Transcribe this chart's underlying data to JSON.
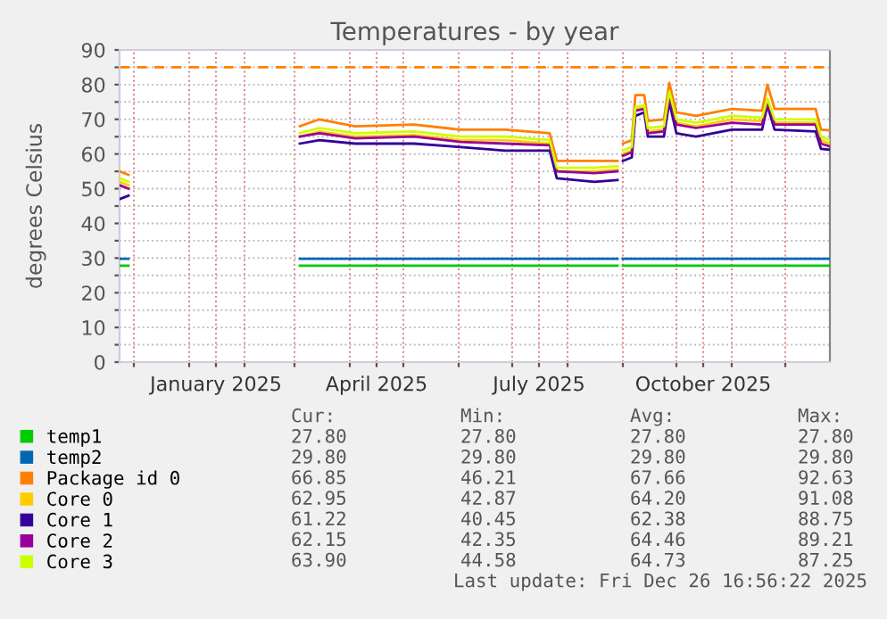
{
  "chart_data": {
    "type": "line",
    "title": "Temperatures - by year",
    "ylabel": "degrees Celsius",
    "x": [
      "2024-11-23",
      "2024-11-28",
      "2024-12-15",
      "2025-03-04",
      "2025-03-15",
      "2025-04-04",
      "2025-05-07",
      "2025-06-02",
      "2025-06-27",
      "2025-07-22",
      "2025-07-26",
      "2025-08-16",
      "2025-08-29",
      "2025-08-31",
      "2025-09-01",
      "2025-09-06",
      "2025-09-08",
      "2025-09-13",
      "2025-09-15",
      "2025-09-24",
      "2025-09-27",
      "2025-10-01",
      "2025-10-12",
      "2025-11-01",
      "2025-11-18",
      "2025-11-21",
      "2025-11-25",
      "2025-12-18",
      "2025-12-21",
      "2025-12-26"
    ],
    "series": [
      {
        "name": "temp1",
        "color": "#00cc00",
        "values": [
          27.8,
          27.8,
          null,
          27.8,
          27.8,
          27.8,
          27.8,
          27.8,
          27.8,
          27.8,
          27.8,
          27.8,
          27.8,
          null,
          27.8,
          27.8,
          27.8,
          27.8,
          27.8,
          27.8,
          27.8,
          27.8,
          27.8,
          27.8,
          27.8,
          27.8,
          27.8,
          27.8,
          27.8,
          27.8
        ]
      },
      {
        "name": "temp2",
        "color": "#0066b3",
        "values": [
          29.8,
          29.8,
          null,
          29.8,
          29.8,
          29.8,
          29.8,
          29.8,
          29.8,
          29.8,
          29.8,
          29.8,
          29.8,
          null,
          29.8,
          29.8,
          29.8,
          29.8,
          29.8,
          29.8,
          29.8,
          29.8,
          29.8,
          29.8,
          29.8,
          29.8,
          29.8,
          29.8,
          29.8,
          29.8
        ]
      },
      {
        "name": "Package id 0",
        "color": "#ff8000",
        "values": [
          55,
          54,
          null,
          68,
          70,
          68,
          68.5,
          67,
          67,
          66,
          58,
          58,
          58,
          null,
          63,
          64,
          77,
          77,
          69.5,
          70,
          80.5,
          72,
          71,
          73,
          72.5,
          80,
          73,
          73,
          67,
          66.85
        ]
      },
      {
        "name": "Core 0",
        "color": "#ffcc00",
        "values": [
          52,
          51,
          null,
          65,
          66.5,
          65,
          65.5,
          64,
          64,
          63,
          55,
          55,
          55.5,
          null,
          60,
          61,
          73,
          73.5,
          66.5,
          67,
          77,
          69,
          68,
          70,
          69.5,
          75,
          69,
          69,
          64,
          62.95
        ]
      },
      {
        "name": "Core 1",
        "color": "#330099",
        "values": [
          47,
          48,
          null,
          63,
          64,
          63,
          63,
          62,
          61,
          61,
          53,
          52,
          52.5,
          null,
          58,
          59,
          71,
          72,
          65,
          65,
          75,
          66,
          65,
          67,
          67,
          74,
          67,
          66.5,
          61.5,
          61.22
        ]
      },
      {
        "name": "Core 2",
        "color": "#990099",
        "values": [
          51,
          50,
          null,
          65,
          66,
          64.5,
          65,
          63.5,
          63,
          62.5,
          55,
          54.5,
          55,
          null,
          59.5,
          60.5,
          72.5,
          73,
          66,
          66.5,
          76.5,
          68.5,
          67.5,
          69,
          68.5,
          75,
          68.5,
          68.5,
          63,
          62.15
        ]
      },
      {
        "name": "Core 3",
        "color": "#ccff00",
        "values": [
          53,
          52,
          null,
          66,
          67.5,
          66,
          66.5,
          65,
          65,
          64,
          56,
          56,
          56.5,
          null,
          61,
          62,
          73.5,
          74,
          67.5,
          68,
          78,
          70,
          69,
          71,
          70.5,
          76,
          70,
          70,
          65,
          63.9
        ]
      }
    ],
    "xlim": [
      "2024-11-23",
      "2025-12-26"
    ],
    "xticks": [
      {
        "value": "2024-12-01",
        "label": null
      },
      {
        "value": "2025-01-01",
        "label": null
      },
      {
        "value": "2025-01-16",
        "label": "January 2025"
      },
      {
        "value": "2025-02-01",
        "label": null
      },
      {
        "value": "2025-03-01",
        "label": null
      },
      {
        "value": "2025-04-01",
        "label": null
      },
      {
        "value": "2025-04-16",
        "label": "April 2025"
      },
      {
        "value": "2025-05-01",
        "label": null
      },
      {
        "value": "2025-06-01",
        "label": null
      },
      {
        "value": "2025-07-01",
        "label": null
      },
      {
        "value": "2025-07-16",
        "label": "July 2025"
      },
      {
        "value": "2025-08-01",
        "label": null
      },
      {
        "value": "2025-09-01",
        "label": null
      },
      {
        "value": "2025-10-01",
        "label": null
      },
      {
        "value": "2025-10-16",
        "label": "October 2025"
      },
      {
        "value": "2025-11-01",
        "label": null
      },
      {
        "value": "2025-12-01",
        "label": null
      }
    ],
    "ylim": [
      0,
      90
    ],
    "yticks": [
      0,
      {
        "value": 5,
        "label": null
      },
      10,
      {
        "value": 15,
        "label": null
      },
      20,
      {
        "value": 25,
        "label": null
      },
      30,
      {
        "value": 35,
        "label": null
      },
      40,
      {
        "value": 45,
        "label": null
      },
      50,
      {
        "value": 55,
        "label": null
      },
      60,
      {
        "value": 65,
        "label": null
      },
      70,
      {
        "value": 75,
        "label": null
      },
      80,
      {
        "value": 85,
        "label": null
      },
      90
    ],
    "grid": true,
    "legend": "bottom",
    "marker": "none",
    "line_style": "solid",
    "ref_lines": [
      {
        "axis": "y",
        "value": 85,
        "label": null,
        "color": "#ff8000",
        "line_style": "dashed"
      }
    ],
    "annotations": [
      "Cur:",
      "Min:",
      "Avg:",
      "Max:",
      "27.80",
      "27.80",
      "27.80",
      "27.80",
      "29.80",
      "29.80",
      "29.80",
      "29.80",
      "66.85",
      "46.21",
      "67.66",
      "92.63",
      "62.95",
      "42.87",
      "64.20",
      "91.08",
      "61.22",
      "40.45",
      "62.38",
      "88.75",
      "62.15",
      "42.35",
      "64.46",
      "89.21",
      "63.90",
      "44.58",
      "64.73",
      "87.25",
      "Last update: Fri Dec 26 16:56:22 2025"
    ]
  }
}
